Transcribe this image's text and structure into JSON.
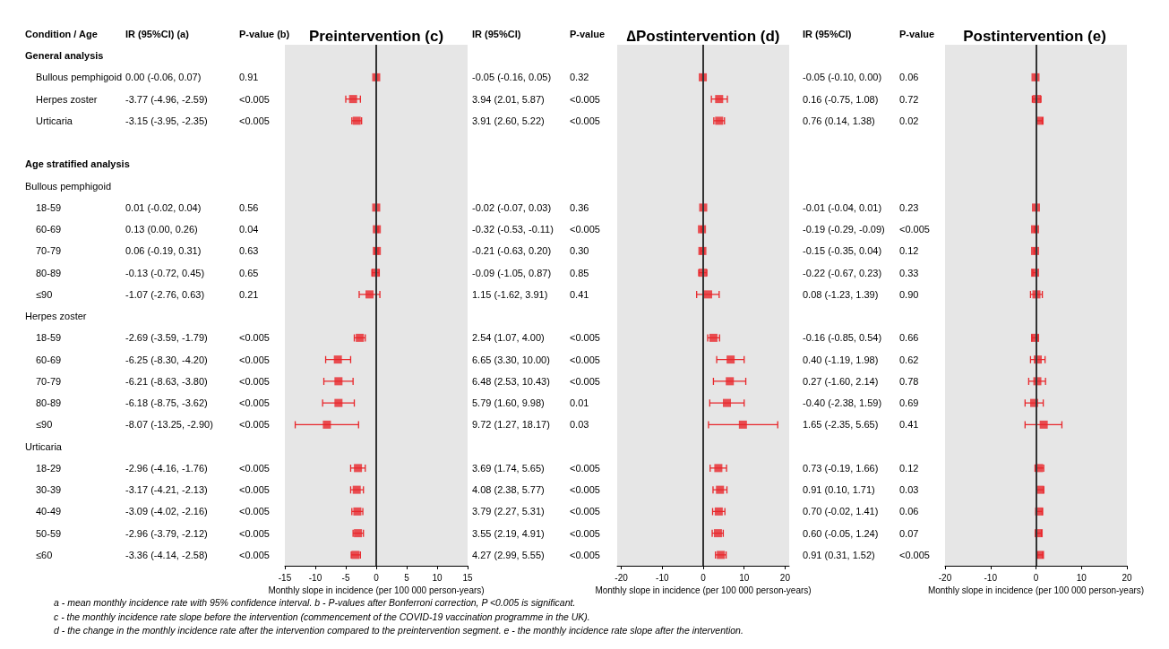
{
  "chart_data": [
    {
      "type": "other",
      "title": "Condition / Age",
      "categories": [
        "General analysis",
        "Bullous pemphigoid",
        "Herpes zoster",
        "Urticaria",
        null,
        "Age stratified analysis",
        "Bullous pemphigoid",
        "18-59",
        "60-69",
        "70-79",
        "80-89",
        "≤90",
        "Herpes zoster",
        "18-59",
        "60-69",
        "70-79",
        "80-89",
        "≤90",
        "Urticaria",
        "18-29",
        "30-39",
        "40-49",
        "50-59",
        "≤60"
      ],
      "annotations": [
        "a - mean monthly incidence rate with 95% confidence interval. b - P-values after Bonferroni correction, P <0.005 is significant.",
        "c - the monthly incidence rate slope before the intervention (commencement of the COVID-19 vaccination programme in the UK).",
        "d - the change in the monthly incidence rate after the intervention compared to the preintervention segment. e - the monthly incidence rate slope after the intervention."
      ]
    },
    {
      "type": "other",
      "title": "IR (95%CI) (a)",
      "categories": [
        null,
        "0.00 (-0.06, 0.07)",
        "-3.77 (-4.96, -2.59)",
        "-3.15 (-3.95, -2.35)",
        null,
        null,
        null,
        "0.01 (-0.02, 0.04)",
        "0.13 (0.00, 0.26)",
        "0.06 (-0.19, 0.31)",
        "-0.13 (-0.72, 0.45)",
        "-1.07 (-2.76, 0.63)",
        null,
        "-2.69 (-3.59, -1.79)",
        "-6.25 (-8.30, -4.20)",
        "-6.21 (-8.63, -3.80)",
        "-6.18 (-8.75, -3.62)",
        "-8.07 (-13.25, -2.90)",
        null,
        "-2.96 (-4.16, -1.76)",
        "-3.17 (-4.21, -2.13)",
        "-3.09 (-4.02, -2.16)",
        "-2.96 (-3.79, -2.12)",
        "-3.36 (-4.14, -2.58)"
      ]
    },
    {
      "type": "other",
      "title": "P-value (b)",
      "categories": [
        null,
        "0.91",
        "<0.005",
        "<0.005",
        null,
        null,
        null,
        "0.56",
        "0.04",
        "0.63",
        "0.65",
        "0.21",
        null,
        "<0.005",
        "<0.005",
        "<0.005",
        "<0.005",
        "<0.005",
        null,
        "<0.005",
        "<0.005",
        "<0.005",
        "<0.005",
        "<0.005"
      ]
    },
    {
      "type": "scatter",
      "orientation": "horizontal",
      "title": "Preintervention (c)",
      "xlabel": "Monthly slope in incidence (per 100 000 person-years)",
      "categories": [
        null,
        null,
        null,
        null,
        null,
        null,
        null,
        null,
        null,
        null,
        null,
        null,
        null,
        null,
        null,
        null,
        null,
        null,
        null,
        null,
        null,
        null,
        null,
        null
      ],
      "color": "#e8262a",
      "marker": "square",
      "tick_labels": "x",
      "xlim": [
        -15,
        15
      ],
      "xticks": [
        -15,
        -10,
        -5,
        0,
        5,
        10,
        15
      ],
      "ref_lines": [
        {
          "axis": "x",
          "value": 0,
          "color": "#333333"
        }
      ],
      "values": [
        null,
        0.0,
        -3.8,
        -3.2,
        null,
        null,
        null,
        0.0,
        0.1,
        0.1,
        -0.1,
        -1.1,
        null,
        -2.7,
        -6.3,
        -6.2,
        -6.2,
        -8.1,
        null,
        -3.0,
        -3.2,
        -3.1,
        -3.0,
        -3.4
      ],
      "errors": [
        null,
        [
          -0.1,
          0.1
        ],
        [
          -5.0,
          -2.6
        ],
        [
          -4.0,
          -2.4
        ],
        null,
        null,
        null,
        [
          0.0,
          0.0
        ],
        [
          0.0,
          0.3
        ],
        [
          -0.2,
          0.3
        ],
        [
          -0.7,
          0.5
        ],
        [
          -2.8,
          0.6
        ],
        null,
        [
          -3.6,
          -1.8
        ],
        [
          -8.3,
          -4.2
        ],
        [
          -8.6,
          -3.8
        ],
        [
          -8.8,
          -3.6
        ],
        [
          -13.3,
          -2.9
        ],
        null,
        [
          -4.2,
          -1.8
        ],
        [
          -4.2,
          -2.1
        ],
        [
          -4.0,
          -2.2
        ],
        [
          -3.8,
          -2.1
        ],
        [
          -4.1,
          -2.6
        ]
      ]
    },
    {
      "type": "other",
      "title": "IR (95%CI)",
      "categories": [
        null,
        "-0.05 (-0.16, 0.05)",
        "3.94 (2.01, 5.87)",
        "3.91 (2.60, 5.22)",
        null,
        null,
        null,
        "-0.02 (-0.07, 0.03)",
        "-0.32 (-0.53, -0.11)",
        "-0.21 (-0.63, 0.20)",
        "-0.09 (-1.05, 0.87)",
        "1.15 (-1.62, 3.91)",
        null,
        "2.54 (1.07, 4.00)",
        "6.65 (3.30, 10.00)",
        "6.48 (2.53, 10.43)",
        "5.79 (1.60, 9.98)",
        "9.72 (1.27, 18.17)",
        null,
        "3.69 (1.74, 5.65)",
        "4.08 (2.38, 5.77)",
        "3.79 (2.27, 5.31)",
        "3.55 (2.19, 4.91)",
        "4.27 (2.99, 5.55)"
      ]
    },
    {
      "type": "other",
      "title": "P-value",
      "categories": [
        null,
        "0.32",
        "<0.005",
        "<0.005",
        null,
        null,
        null,
        "0.36",
        "<0.005",
        "0.30",
        "0.85",
        "0.41",
        null,
        "<0.005",
        "<0.005",
        "<0.005",
        "0.01",
        "0.03",
        null,
        "<0.005",
        "<0.005",
        "<0.005",
        "<0.005",
        "<0.005"
      ]
    },
    {
      "type": "scatter",
      "orientation": "horizontal",
      "title": "∆Postintervention (d)",
      "xlabel": "Monthly slope in incidence (per 100 000 person-years)",
      "categories": [
        null,
        null,
        null,
        null,
        null,
        null,
        null,
        null,
        null,
        null,
        null,
        null,
        null,
        null,
        null,
        null,
        null,
        null,
        null,
        null,
        null,
        null,
        null,
        null
      ],
      "color": "#e8262a",
      "marker": "square",
      "tick_labels": "x",
      "xlim": [
        -21,
        21
      ],
      "xticks": [
        -20,
        -10,
        0,
        10,
        20
      ],
      "ref_lines": [
        {
          "axis": "x",
          "value": 0,
          "color": "#333333"
        }
      ],
      "values": [
        null,
        -0.1,
        3.9,
        3.9,
        null,
        null,
        null,
        0.0,
        -0.3,
        -0.2,
        -0.1,
        1.2,
        null,
        2.5,
        6.7,
        6.5,
        5.8,
        9.7,
        null,
        3.7,
        4.1,
        3.8,
        3.6,
        4.3
      ],
      "errors": [
        null,
        [
          -0.2,
          0.1
        ],
        [
          2.0,
          5.9
        ],
        [
          2.6,
          5.2
        ],
        null,
        null,
        null,
        [
          -0.1,
          0.0
        ],
        [
          -0.5,
          -0.1
        ],
        [
          -0.6,
          0.2
        ],
        [
          -1.1,
          0.9
        ],
        [
          -1.6,
          3.9
        ],
        null,
        [
          1.1,
          4.0
        ],
        [
          3.3,
          10.0
        ],
        [
          2.5,
          10.4
        ],
        [
          1.6,
          10.0
        ],
        [
          1.3,
          18.2
        ],
        null,
        [
          1.7,
          5.7
        ],
        [
          2.4,
          5.8
        ],
        [
          2.3,
          5.3
        ],
        [
          2.2,
          4.9
        ],
        [
          3.0,
          5.6
        ]
      ]
    },
    {
      "type": "other",
      "title": "IR (95%CI)",
      "categories": [
        null,
        "-0.05 (-0.10, 0.00)",
        "0.16 (-0.75, 1.08)",
        "0.76 (0.14, 1.38)",
        null,
        null,
        null,
        "-0.01 (-0.04, 0.01)",
        "-0.19 (-0.29, -0.09)",
        "-0.15 (-0.35, 0.04)",
        "-0.22 (-0.67, 0.23)",
        "0.08 (-1.23, 1.39)",
        null,
        "-0.16 (-0.85, 0.54)",
        "0.40 (-1.19, 1.98)",
        "0.27 (-1.60, 2.14)",
        "-0.40 (-2.38, 1.59)",
        "1.65 (-2.35, 5.65)",
        null,
        "0.73 (-0.19, 1.66)",
        "0.91 (0.10, 1.71)",
        "0.70 (-0.02, 1.41)",
        "0.60 (-0.05, 1.24)",
        "0.91 (0.31, 1.52)"
      ]
    },
    {
      "type": "other",
      "title": "P-value",
      "categories": [
        null,
        "0.06",
        "0.72",
        "0.02",
        null,
        null,
        null,
        "0.23",
        "<0.005",
        "0.12",
        "0.33",
        "0.90",
        null,
        "0.66",
        "0.62",
        "0.78",
        "0.69",
        "0.41",
        null,
        "0.12",
        "0.03",
        "0.06",
        "0.07",
        "<0.005"
      ]
    },
    {
      "type": "scatter",
      "orientation": "horizontal",
      "title": "Postintervention (e)",
      "xlabel": "Monthly slope in incidence (per 100 000 person-years)",
      "categories": [
        null,
        null,
        null,
        null,
        null,
        null,
        null,
        null,
        null,
        null,
        null,
        null,
        null,
        null,
        null,
        null,
        null,
        null,
        null,
        null,
        null,
        null,
        null,
        null
      ],
      "color": "#e8262a",
      "marker": "square",
      "tick_labels": "x",
      "xlim": [
        -20,
        20
      ],
      "xticks": [
        -20,
        -10,
        0,
        10,
        20
      ],
      "ref_lines": [
        {
          "axis": "x",
          "value": 0,
          "color": "#333333"
        }
      ],
      "values": [
        null,
        -0.1,
        0.2,
        0.8,
        null,
        null,
        null,
        0.0,
        -0.2,
        -0.2,
        -0.2,
        0.1,
        null,
        -0.2,
        0.4,
        0.3,
        -0.4,
        1.7,
        null,
        0.7,
        0.9,
        0.7,
        0.6,
        0.9
      ],
      "errors": [
        null,
        [
          -0.1,
          0.0
        ],
        [
          -0.8,
          1.1
        ],
        [
          0.1,
          1.4
        ],
        null,
        null,
        null,
        [
          0.0,
          0.0
        ],
        [
          -0.3,
          -0.1
        ],
        [
          -0.4,
          0.0
        ],
        [
          -0.7,
          0.2
        ],
        [
          -1.2,
          1.4
        ],
        null,
        [
          -0.9,
          0.5
        ],
        [
          -1.2,
          2.0
        ],
        [
          -1.6,
          2.1
        ],
        [
          -2.4,
          1.6
        ],
        [
          -2.4,
          5.7
        ],
        null,
        [
          -0.2,
          1.7
        ],
        [
          0.1,
          1.7
        ],
        [
          0.0,
          1.4
        ],
        [
          -0.1,
          1.2
        ],
        [
          0.3,
          1.5
        ]
      ]
    }
  ]
}
